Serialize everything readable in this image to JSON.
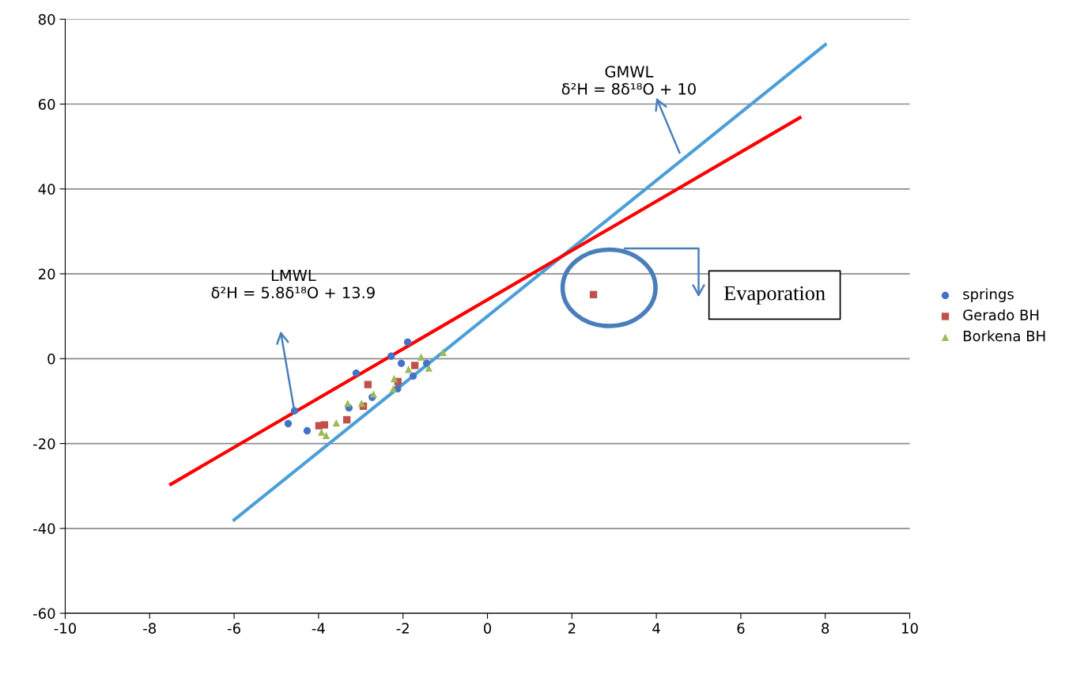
{
  "chart_data": {
    "type": "scatter",
    "xlim": [
      -10,
      10
    ],
    "ylim": [
      -60,
      80
    ],
    "xticks": [
      -10,
      -8,
      -6,
      -4,
      -2,
      0,
      2,
      4,
      6,
      8,
      10
    ],
    "yticks": [
      -60,
      -40,
      -20,
      0,
      20,
      40,
      60,
      80
    ],
    "grid": "y",
    "legend": "right",
    "series": [
      {
        "name": "springs",
        "color": "#4472c4",
        "marker": "circle",
        "x": [
          -4.72,
          -4.57,
          -4.27,
          -3.11,
          -3.28,
          -2.73,
          -2.28,
          -1.89,
          -2.04,
          -2.13,
          -1.76,
          -1.44
        ],
        "values": [
          -15.3,
          -12.3,
          -17.0,
          -3.4,
          -11.6,
          -9.1,
          0.6,
          3.9,
          -1.1,
          -7.1,
          -4.1,
          -1.1
        ]
      },
      {
        "name": "Gerado BH",
        "color": "#c0504d",
        "marker": "square",
        "x": [
          -3.99,
          -3.86,
          -3.33,
          -2.83,
          -2.94,
          -2.12,
          -1.72,
          2.51
        ],
        "values": [
          -15.8,
          -15.6,
          -14.4,
          -6.1,
          -11.2,
          -5.4,
          -1.6,
          15.1
        ]
      },
      {
        "name": "Borkena BH",
        "color": "#9bbb59",
        "marker": "triangle",
        "x": [
          -3.93,
          -3.82,
          -3.58,
          -3.31,
          -2.98,
          -2.7,
          -2.23,
          -2.21,
          -1.87,
          -1.57,
          -1.39,
          -1.05
        ],
        "values": [
          -17.3,
          -18.1,
          -15.1,
          -10.5,
          -10.5,
          -8.3,
          -7.1,
          -4.7,
          -2.5,
          0.4,
          -2.2,
          1.5
        ]
      },
      {
        "type": "line",
        "color": "#4a9fd8",
        "marker": "none",
        "x": [
          -6,
          8
        ],
        "values": [
          -38,
          74
        ]
      },
      {
        "type": "line",
        "color": "#ff0000",
        "marker": "none",
        "x": [
          -7.5,
          7.4
        ],
        "values": [
          -29.6,
          56.8
        ]
      }
    ],
    "annotations": [
      "LMWL\nδ²H = 5.8δ¹⁸O + 13.9",
      "GMWL\nδ²H = 8δ¹⁸O + 10",
      "Evaporation"
    ]
  }
}
